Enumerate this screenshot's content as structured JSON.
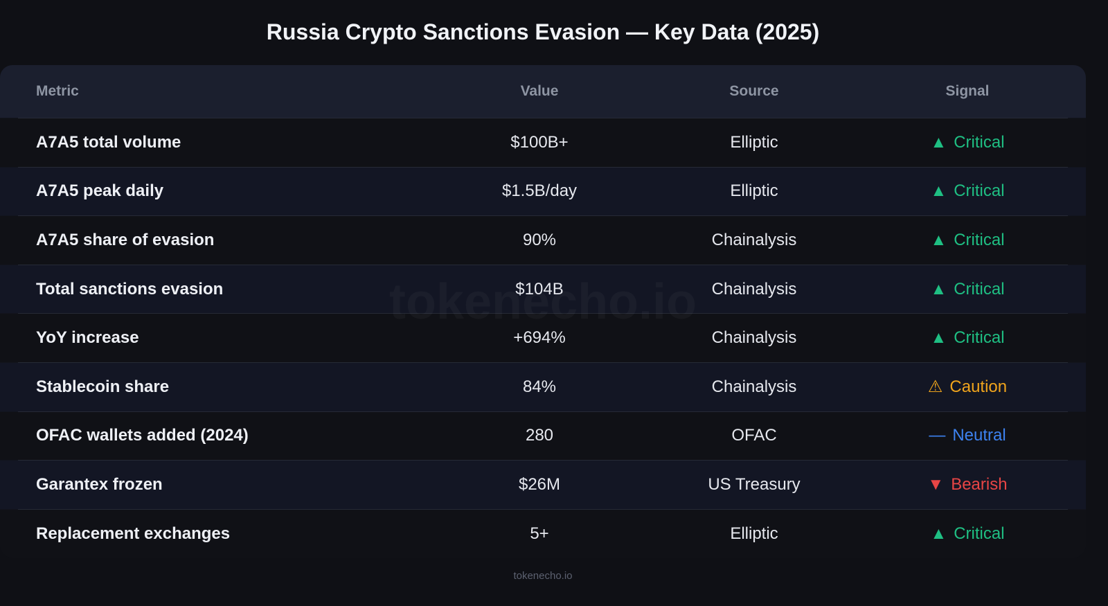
{
  "title": "Russia Crypto Sanctions Evasion — Key Data (2025)",
  "columns": [
    "Metric",
    "Value",
    "Source",
    "Signal"
  ],
  "signal_colors": {
    "Critical": "#1fbf83",
    "Caution": "#f0a41c",
    "Neutral": "#3d82f0",
    "Bearish": "#e84545"
  },
  "rows": [
    {
      "metric": "A7A5 total volume",
      "value": "$100B+",
      "source": "Elliptic",
      "signal": "Critical",
      "icon": "▲",
      "icon_name": "triangle-up-icon"
    },
    {
      "metric": "A7A5 peak daily",
      "value": "$1.5B/day",
      "source": "Elliptic",
      "signal": "Critical",
      "icon": "▲",
      "icon_name": "triangle-up-icon"
    },
    {
      "metric": "A7A5 share of evasion",
      "value": "90%",
      "source": "Chainalysis",
      "signal": "Critical",
      "icon": "▲",
      "icon_name": "triangle-up-icon"
    },
    {
      "metric": "Total sanctions evasion",
      "value": "$104B",
      "source": "Chainalysis",
      "signal": "Critical",
      "icon": "▲",
      "icon_name": "triangle-up-icon"
    },
    {
      "metric": "YoY increase",
      "value": "+694%",
      "source": "Chainalysis",
      "signal": "Critical",
      "icon": "▲",
      "icon_name": "triangle-up-icon"
    },
    {
      "metric": "Stablecoin share",
      "value": "84%",
      "source": "Chainalysis",
      "signal": "Caution",
      "icon": "⚠",
      "icon_name": "warning-icon"
    },
    {
      "metric": "OFAC wallets added (2024)",
      "value": "280",
      "source": "OFAC",
      "signal": "Neutral",
      "icon": "—",
      "icon_name": "dash-icon"
    },
    {
      "metric": "Garantex frozen",
      "value": "$26M",
      "source": "US Treasury",
      "signal": "Bearish",
      "icon": "▼",
      "icon_name": "triangle-down-icon"
    },
    {
      "metric": "Replacement exchanges",
      "value": "5+",
      "source": "Elliptic",
      "signal": "Critical",
      "icon": "▲",
      "icon_name": "triangle-up-icon"
    }
  ],
  "watermark": "tokenecho.io",
  "footer": "tokenecho.io"
}
